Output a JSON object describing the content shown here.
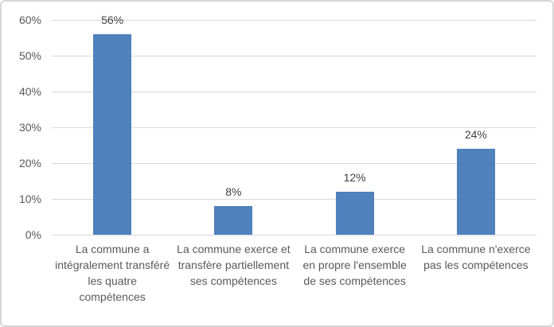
{
  "chart_data": {
    "type": "bar",
    "title": "",
    "xlabel": "",
    "ylabel": "",
    "categories": [
      "La commune a intégralement transféré les quatre compétences",
      "La commune exerce et transfère partiellement ses compétences",
      "La commune exerce en propre l'ensemble de ses compétences",
      "La commune n'exerce pas les compétences"
    ],
    "values": [
      56,
      8,
      12,
      24
    ],
    "data_labels": [
      "56%",
      "8%",
      "12%",
      "24%"
    ],
    "y_ticks": [
      "0%",
      "10%",
      "20%",
      "30%",
      "40%",
      "50%",
      "60%"
    ],
    "y_tick_values": [
      0,
      10,
      20,
      30,
      40,
      50,
      60
    ],
    "ylim": [
      0,
      60
    ],
    "grid": true,
    "legend_position": "none",
    "bar_color": "#4F81BD",
    "gridline_color": "#D9D9D9",
    "axis_text_color": "#595959",
    "data_label_color": "#404040",
    "border_color": "#D6D6D6",
    "background_color": "#FFFFFF"
  }
}
